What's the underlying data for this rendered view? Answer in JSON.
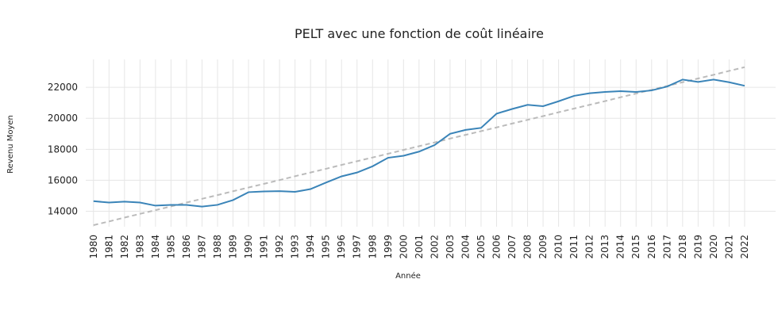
{
  "chart_data": {
    "type": "line",
    "title": "PELT avec une fonction de coût linéaire",
    "xlabel": "Année",
    "ylabel": "Revenu Moyen",
    "x": [
      1980,
      1981,
      1982,
      1983,
      1984,
      1985,
      1986,
      1987,
      1988,
      1989,
      1990,
      1991,
      1992,
      1993,
      1994,
      1995,
      1996,
      1997,
      1998,
      1999,
      2000,
      2001,
      2002,
      2003,
      2004,
      2005,
      2006,
      2007,
      2008,
      2009,
      2010,
      2011,
      2012,
      2013,
      2014,
      2015,
      2016,
      2017,
      2018,
      2019,
      2020,
      2021,
      2022
    ],
    "xticks": [
      1980,
      1981,
      1982,
      1983,
      1984,
      1985,
      1986,
      1987,
      1988,
      1989,
      1990,
      1991,
      1992,
      1993,
      1994,
      1995,
      1996,
      1997,
      1998,
      1999,
      2000,
      2001,
      2002,
      2003,
      2004,
      2005,
      2006,
      2007,
      2008,
      2009,
      2010,
      2011,
      2012,
      2013,
      2014,
      2015,
      2016,
      2017,
      2018,
      2019,
      2020,
      2021,
      2022
    ],
    "xlim": [
      1979.5,
      2024
    ],
    "ylim": [
      13000,
      23800
    ],
    "yticks": [
      14000,
      16000,
      18000,
      20000,
      22000
    ],
    "grid": true,
    "series": [
      {
        "color": "#3a84b8",
        "dashed": false,
        "values": [
          14650,
          14560,
          14620,
          14560,
          14360,
          14410,
          14410,
          14300,
          14410,
          14720,
          15230,
          15280,
          15300,
          15250,
          15430,
          15850,
          16250,
          16500,
          16900,
          17450,
          17580,
          17850,
          18270,
          19000,
          19250,
          19380,
          20300,
          20600,
          20870,
          20780,
          21100,
          21450,
          21620,
          21700,
          21750,
          21700,
          21800,
          22050,
          22500,
          22350,
          22500,
          22330,
          22100
        ]
      },
      {
        "color": "#bbbbbb",
        "dashed": true,
        "values": [
          13100,
          13340,
          13590,
          13830,
          14070,
          14310,
          14560,
          14800,
          15040,
          15290,
          15530,
          15770,
          16010,
          16260,
          16500,
          16740,
          16990,
          17230,
          17470,
          17710,
          17960,
          18200,
          18440,
          18690,
          18930,
          19170,
          19410,
          19660,
          19900,
          20140,
          20390,
          20630,
          20870,
          21110,
          21360,
          21600,
          21840,
          22090,
          22330,
          22570,
          22810,
          23060,
          23300
        ]
      }
    ]
  }
}
